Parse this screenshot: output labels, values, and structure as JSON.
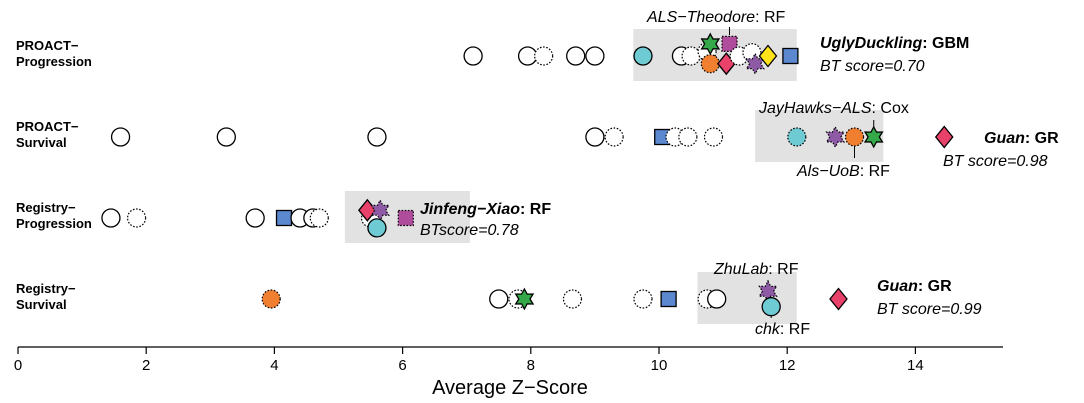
{
  "colors": {
    "gbm": "#ffe31a",
    "gr": "#e8416a",
    "rf": "#b04c9c",
    "cox": "#35a84a",
    "orange": "#f08030",
    "cyan": "#6fcbd3",
    "blue": "#5b88cf",
    "purple_star": "#8e5aa6",
    "highlight": "#e2e2e2"
  },
  "chart_data": {
    "type": "scatter",
    "xlabel": "Average Z−Score",
    "xlim": [
      0,
      15
    ],
    "xticks": [
      0,
      2,
      4,
      6,
      8,
      10,
      12,
      14
    ],
    "rows": [
      {
        "label": [
          "PROACT−",
          "Progression"
        ],
        "highlight": [
          9.6,
          12.15
        ],
        "points": [
          {
            "x": 7.1,
            "y": 0,
            "shape": "circle",
            "fill": "white",
            "style": "solid"
          },
          {
            "x": 7.95,
            "y": 0,
            "shape": "circle",
            "fill": "white",
            "style": "solid"
          },
          {
            "x": 8.2,
            "y": 0,
            "shape": "circle",
            "fill": "white",
            "style": "dotted"
          },
          {
            "x": 8.7,
            "y": 0,
            "shape": "circle",
            "fill": "white",
            "style": "solid"
          },
          {
            "x": 9.0,
            "y": 0,
            "shape": "circle",
            "fill": "white",
            "style": "solid"
          },
          {
            "x": 9.75,
            "y": 0,
            "shape": "circle",
            "fill": "cyan",
            "style": "solid"
          },
          {
            "x": 10.35,
            "y": 0,
            "shape": "circle",
            "fill": "white",
            "style": "solid"
          },
          {
            "x": 10.5,
            "y": 0,
            "shape": "circle",
            "fill": "white",
            "style": "dotted"
          },
          {
            "x": 10.75,
            "y": 0.2,
            "shape": "circle",
            "fill": "white",
            "style": "dotted"
          },
          {
            "x": 10.8,
            "y": -0.35,
            "shape": "circle",
            "fill": "orange",
            "style": "dotted"
          },
          {
            "x": 10.8,
            "y": 0.55,
            "shape": "star6",
            "fill": "cox",
            "style": "solid"
          },
          {
            "x": 11.05,
            "y": -0.35,
            "shape": "diamond",
            "fill": "gr",
            "style": "solid"
          },
          {
            "x": 11.1,
            "y": 0.55,
            "shape": "square",
            "fill": "rf",
            "style": "dotted"
          },
          {
            "x": 11.25,
            "y": 0,
            "shape": "circle",
            "fill": "white",
            "style": "dotted"
          },
          {
            "x": 11.45,
            "y": 0.15,
            "shape": "circle",
            "fill": "white",
            "style": "dotted"
          },
          {
            "x": 11.5,
            "y": -0.35,
            "shape": "star6",
            "fill": "purple_star",
            "style": "dotted"
          },
          {
            "x": 11.7,
            "y": 0,
            "shape": "diamond",
            "fill": "gbm",
            "style": "solid"
          },
          {
            "x": 12.05,
            "y": 0,
            "shape": "square",
            "fill": "blue",
            "style": "solid"
          }
        ]
      },
      {
        "label": [
          "PROACT−",
          "Survival"
        ],
        "highlight": [
          11.5,
          13.5
        ],
        "points": [
          {
            "x": 1.6,
            "y": 0,
            "shape": "circle",
            "fill": "white",
            "style": "solid"
          },
          {
            "x": 3.25,
            "y": 0,
            "shape": "circle",
            "fill": "white",
            "style": "solid"
          },
          {
            "x": 5.6,
            "y": 0,
            "shape": "circle",
            "fill": "white",
            "style": "solid"
          },
          {
            "x": 9.0,
            "y": 0,
            "shape": "circle",
            "fill": "white",
            "style": "solid"
          },
          {
            "x": 9.3,
            "y": 0,
            "shape": "circle",
            "fill": "white",
            "style": "dotted"
          },
          {
            "x": 10.05,
            "y": 0,
            "shape": "square",
            "fill": "blue",
            "style": "solid"
          },
          {
            "x": 10.25,
            "y": 0,
            "shape": "circle",
            "fill": "white",
            "style": "dotted"
          },
          {
            "x": 10.45,
            "y": 0,
            "shape": "circle",
            "fill": "white",
            "style": "dotted"
          },
          {
            "x": 10.85,
            "y": 0,
            "shape": "circle",
            "fill": "white",
            "style": "dotted"
          },
          {
            "x": 12.15,
            "y": 0,
            "shape": "circle",
            "fill": "cyan",
            "style": "dotted"
          },
          {
            "x": 12.75,
            "y": 0,
            "shape": "star6",
            "fill": "purple_star",
            "style": "dotted"
          },
          {
            "x": 13.05,
            "y": 0,
            "shape": "circle",
            "fill": "orange",
            "style": "dotted"
          },
          {
            "x": 13.35,
            "y": 0,
            "shape": "star6",
            "fill": "cox",
            "style": "solid"
          },
          {
            "x": 14.45,
            "y": 0,
            "shape": "diamond",
            "fill": "gr",
            "style": "solid"
          }
        ]
      },
      {
        "label": [
          "Registry−",
          "Progression"
        ],
        "highlight": [
          5.1,
          7.05
        ],
        "points": [
          {
            "x": 1.45,
            "y": 0,
            "shape": "circle",
            "fill": "white",
            "style": "solid"
          },
          {
            "x": 1.85,
            "y": 0,
            "shape": "circle",
            "fill": "white",
            "style": "dotted"
          },
          {
            "x": 3.7,
            "y": 0,
            "shape": "circle",
            "fill": "white",
            "style": "solid"
          },
          {
            "x": 4.15,
            "y": 0,
            "shape": "square",
            "fill": "blue",
            "style": "solid"
          },
          {
            "x": 4.4,
            "y": 0,
            "shape": "circle",
            "fill": "white",
            "style": "solid"
          },
          {
            "x": 4.6,
            "y": 0,
            "shape": "circle",
            "fill": "white",
            "style": "solid"
          },
          {
            "x": 4.7,
            "y": 0,
            "shape": "circle",
            "fill": "white",
            "style": "dotted"
          },
          {
            "x": 5.5,
            "y": 0,
            "shape": "circle",
            "fill": "white",
            "style": "dotted"
          },
          {
            "x": 5.45,
            "y": 0.35,
            "shape": "diamond",
            "fill": "gr",
            "style": "solid"
          },
          {
            "x": 5.65,
            "y": 0.35,
            "shape": "star6",
            "fill": "purple_star",
            "style": "dotted"
          },
          {
            "x": 5.6,
            "y": -0.45,
            "shape": "circle",
            "fill": "cyan",
            "style": "solid"
          },
          {
            "x": 6.05,
            "y": 0,
            "shape": "square",
            "fill": "rf",
            "style": "dotted"
          }
        ]
      },
      {
        "label": [
          "Registry−",
          "Survival"
        ],
        "highlight": [
          10.6,
          12.15
        ],
        "points": [
          {
            "x": 3.95,
            "y": 0,
            "shape": "circle",
            "fill": "orange",
            "style": "dotted"
          },
          {
            "x": 7.5,
            "y": 0,
            "shape": "circle",
            "fill": "white",
            "style": "solid"
          },
          {
            "x": 7.8,
            "y": 0,
            "shape": "circle",
            "fill": "white",
            "style": "dotted"
          },
          {
            "x": 7.9,
            "y": 0,
            "shape": "star6",
            "fill": "cox",
            "style": "solid"
          },
          {
            "x": 8.65,
            "y": 0,
            "shape": "circle",
            "fill": "white",
            "style": "dotted"
          },
          {
            "x": 9.75,
            "y": 0,
            "shape": "circle",
            "fill": "white",
            "style": "dotted"
          },
          {
            "x": 10.15,
            "y": 0,
            "shape": "square",
            "fill": "blue",
            "style": "solid"
          },
          {
            "x": 10.75,
            "y": 0,
            "shape": "circle",
            "fill": "white",
            "style": "dotted"
          },
          {
            "x": 10.9,
            "y": 0,
            "shape": "circle",
            "fill": "white",
            "style": "solid"
          },
          {
            "x": 11.7,
            "y": 0.35,
            "shape": "star6",
            "fill": "purple_star",
            "style": "dotted"
          },
          {
            "x": 11.75,
            "y": -0.35,
            "shape": "circle",
            "fill": "cyan",
            "style": "solid"
          },
          {
            "x": 12.8,
            "y": 0,
            "shape": "diamond",
            "fill": "gr",
            "style": "solid"
          }
        ]
      }
    ]
  },
  "annotations": {
    "als_theodore": {
      "name": "ALS−Theodore",
      "model": ": RF"
    },
    "ugly_duckling": {
      "name": "UglyDuckling",
      "model": ": GBM",
      "score": "BT score=0.70"
    },
    "jayhawks": {
      "name": "JayHawks−ALS",
      "model": ": Cox"
    },
    "guan_1": {
      "name": "Guan",
      "model": ": GR",
      "score": "BT score=0.98"
    },
    "als_uob": {
      "name": "Als−UoB",
      "model": ": RF"
    },
    "jinfeng": {
      "name": "Jinfeng−Xiao",
      "model": ": RF",
      "score": "BTscore=0.78"
    },
    "zhulab": {
      "name": "ZhuLab",
      "model": ": RF"
    },
    "guan_2": {
      "name": "Guan",
      "model": ": GR",
      "score": "BT score=0.99"
    },
    "chk": {
      "name": "chk",
      "model": ": RF"
    }
  }
}
